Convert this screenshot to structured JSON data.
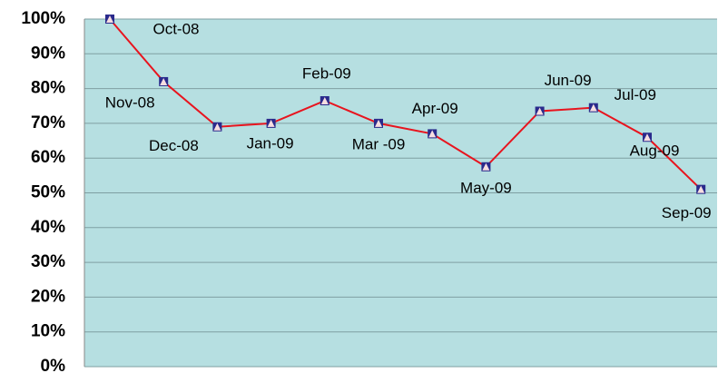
{
  "chart_data": {
    "type": "line",
    "categories": [
      "Oct-08",
      "Nov-08",
      "Dec-08",
      "Jan-09",
      "Feb-09",
      "Mar -09",
      "Apr-09",
      "May-09",
      "Jun-09",
      "Jul-09",
      "Aug-09",
      "Sep-09"
    ],
    "series": [
      {
        "color": "#e8141e",
        "values": [
          100,
          82,
          69,
          70,
          76.5,
          70,
          67,
          57.5,
          73.5,
          74.5,
          66,
          51
        ]
      }
    ],
    "ylim": [
      0,
      100
    ],
    "yticks": [
      {
        "value": 0,
        "label": "0%"
      },
      {
        "value": 10,
        "label": "10%"
      },
      {
        "value": 20,
        "label": "20%"
      },
      {
        "value": 30,
        "label": "30%"
      },
      {
        "value": 40,
        "label": "40%"
      },
      {
        "value": 50,
        "label": "50%"
      },
      {
        "value": 60,
        "label": "60%"
      },
      {
        "value": 70,
        "label": "70%"
      },
      {
        "value": 80,
        "label": "80%"
      },
      {
        "value": 90,
        "label": "90%"
      },
      {
        "value": 100,
        "label": "100%"
      }
    ],
    "grid": true
  }
}
